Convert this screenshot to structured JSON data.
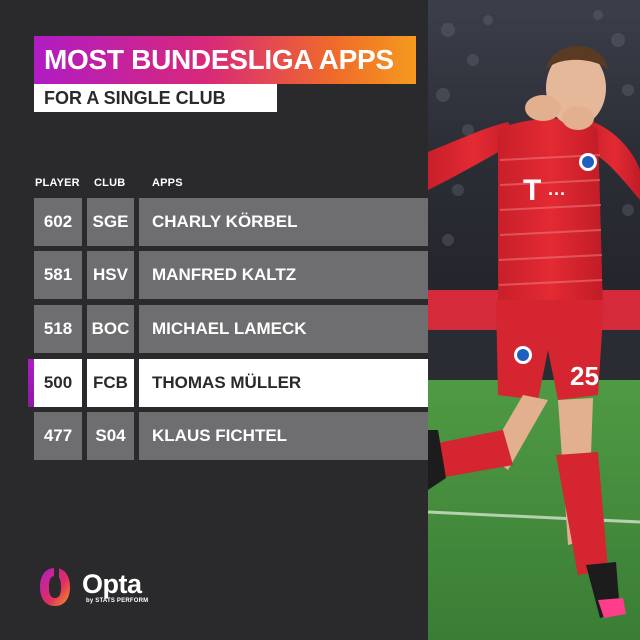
{
  "header": {
    "title": "MOST BUNDESLIGA APPS",
    "subtitle": "FOR A SINGLE CLUB"
  },
  "table": {
    "columns": [
      "PLAYER",
      "CLUB",
      "APPS"
    ],
    "rows": [
      {
        "apps": "602",
        "club": "SGE",
        "player": "CHARLY KÖRBEL",
        "highlighted": false
      },
      {
        "apps": "581",
        "club": "HSV",
        "player": "MANFRED KALTZ",
        "highlighted": false
      },
      {
        "apps": "518",
        "club": "BOC",
        "player": "MICHAEL LAMECK",
        "highlighted": false
      },
      {
        "apps": "500",
        "club": "FCB",
        "player": "THOMAS MÜLLER",
        "highlighted": true
      },
      {
        "apps": "477",
        "club": "S04",
        "player": "KLAUS FICHTEL",
        "highlighted": false
      }
    ]
  },
  "branding": {
    "name": "Opta",
    "byline": "by STATS PERFORM"
  },
  "photo": {
    "shirt_text": "T ···",
    "shirt_number": "25"
  },
  "colors": {
    "background": "#2a2a2c",
    "cell": "#6e6e70",
    "highlight": "#ffffff",
    "gradient_start": "#b01cc4",
    "gradient_end": "#f59a1e",
    "kit_red": "#e0242e",
    "pitch_green": "#3f8a3a"
  }
}
